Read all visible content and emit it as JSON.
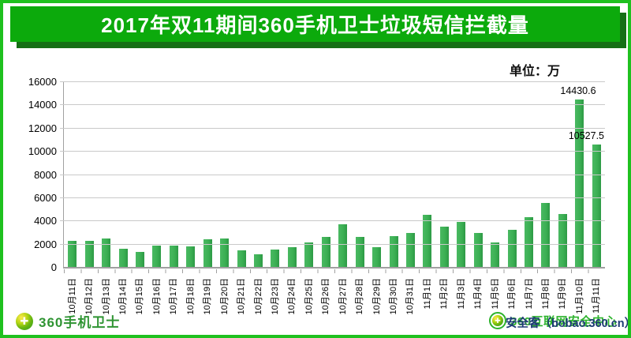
{
  "page": {
    "title": "2017年双11期间360手机卫士垃圾短信拦截量",
    "unit_label": "单位：万"
  },
  "chart_data": {
    "type": "bar",
    "title": "2017年双11期间360手机卫士垃圾短信拦截量",
    "unit": "万",
    "categories": [
      "10月11日",
      "10月12日",
      "10月13日",
      "10月14日",
      "10月15日",
      "10月16日",
      "10月17日",
      "10月18日",
      "10月19日",
      "10月20日",
      "10月21日",
      "10月22日",
      "10月23日",
      "10月24日",
      "10月25日",
      "10月26日",
      "10月27日",
      "10月28日",
      "10月29日",
      "10月30日",
      "10月31日",
      "11月1日",
      "11月2日",
      "11月3日",
      "11月4日",
      "11月5日",
      "11月6日",
      "11月7日",
      "11月8日",
      "11月9日",
      "11月10日",
      "11月11日"
    ],
    "values": [
      2250,
      2230,
      2430,
      1600,
      1330,
      1870,
      1820,
      1800,
      2420,
      2480,
      1400,
      1080,
      1480,
      1710,
      2120,
      2620,
      3680,
      2570,
      1690,
      2640,
      2910,
      4490,
      3480,
      3900,
      2910,
      2120,
      3230,
      4270,
      5520,
      4560,
      14430.6,
      10527.5
    ],
    "point_labels": [
      null,
      null,
      null,
      null,
      null,
      null,
      null,
      null,
      null,
      null,
      null,
      null,
      null,
      null,
      null,
      null,
      null,
      null,
      null,
      null,
      null,
      null,
      null,
      null,
      null,
      null,
      null,
      null,
      null,
      null,
      "14430.6",
      "10527.5"
    ],
    "xlabel": "",
    "ylabel": "",
    "ylim": [
      0,
      16000
    ],
    "ytick_interval": 2000,
    "yticks": [
      "16000",
      "14000",
      "12000",
      "10000",
      "8000",
      "6000",
      "4000",
      "2000",
      "0"
    ],
    "grid": true,
    "legend_position": "none",
    "bar_color": "#3cb054"
  },
  "footer": {
    "logo_text": "360手机卫士",
    "watermark_green": "360互联网安全中心",
    "watermark_dark": "安全客（bobao.360.cn）"
  },
  "colors": {
    "frame_border": "#1fc11f",
    "banner": "#0caa0c",
    "banner_shadow": "#156f15",
    "bar": "#3cb054",
    "gridline": "#c9c9c9",
    "watermark_green": "#2db32d",
    "watermark_dark": "#1d3a75"
  }
}
